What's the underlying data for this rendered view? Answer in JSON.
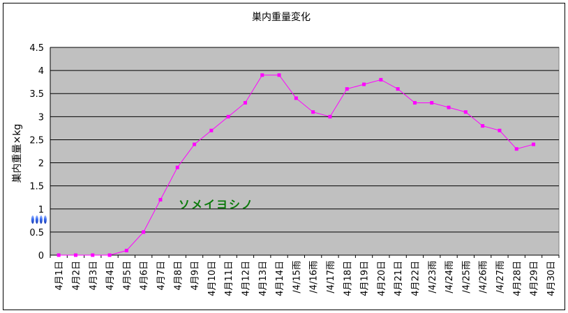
{
  "chart_data": {
    "type": "line",
    "title": "巣内重量変化",
    "ylabel": "巣内重量×kg",
    "xlabel": "",
    "ylim": [
      0,
      4.5
    ],
    "yticks": [
      "0",
      "0.5",
      "1",
      "1.5",
      "2",
      "2.5",
      "3",
      "3.5",
      "4",
      "4.5"
    ],
    "grid": true,
    "legend": "none",
    "categories": [
      "4月1日",
      "4月2日",
      "4月3日",
      "4月4日",
      "4月5日",
      "4月6日",
      "4月7日",
      "4月8日",
      "4月9日",
      "4月10日",
      "4月11日",
      "4月12日",
      "4月13日",
      "4月14日",
      "/4/15雨",
      "/4/16雨",
      "/4/17雨",
      "4月18日",
      "4月19日",
      "4月20日",
      "4月21日",
      "4月22日",
      "/4/23雨",
      "/4/24雨",
      "/4/25雨",
      "/4/26雨",
      "/4/27雨",
      "4月28日",
      "4月29日",
      "4月30日"
    ],
    "series": [
      {
        "values": [
          0,
          0,
          0,
          0,
          0.1,
          0.5,
          1.2,
          1.9,
          2.4,
          2.7,
          3.0,
          3.3,
          3.9,
          3.9,
          3.4,
          3.1,
          3.0,
          3.6,
          3.7,
          3.8,
          3.6,
          3.3,
          3.3,
          3.2,
          3.1,
          2.8,
          2.7,
          2.3,
          2.4,
          null
        ],
        "color": "#ff00ff"
      }
    ],
    "annotations": [
      {
        "text": "ソメイヨシノ",
        "color": "#0b7a0b",
        "arrow_from": "4月7日",
        "arrow_to": "4月15日"
      }
    ],
    "colors": {
      "plot_bg": "#c0c0c0",
      "grid": "#000000",
      "line": "#ff00ff",
      "arrow": "#2f5fd8"
    }
  }
}
